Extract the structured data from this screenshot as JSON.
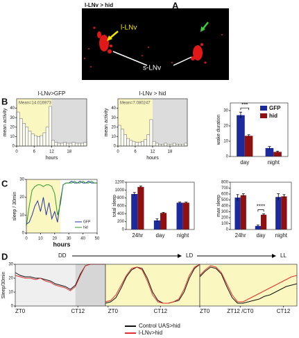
{
  "panel_labels": [
    "A",
    "B",
    "C",
    "D"
  ],
  "image": {
    "title": "l-LNv > hid",
    "labels": [
      "l-LNv",
      "s-LNv"
    ]
  },
  "d_header": [
    "DD",
    "LD",
    "LL"
  ],
  "chart_data": [
    {
      "type": "histogram",
      "title": "l-LNv>GFP",
      "annotation": "Mean=14.016973",
      "xlabel": "hours",
      "ylabel": "mean activity",
      "bins": [
        0,
        1,
        2,
        3,
        4,
        5,
        6,
        7,
        8,
        9,
        10,
        11,
        12,
        13,
        14,
        15,
        16,
        17,
        18,
        19,
        20,
        21,
        22,
        23,
        24
      ],
      "values": [
        36,
        29,
        24,
        20,
        16,
        13,
        11,
        10,
        11,
        14,
        20,
        42,
        6,
        4,
        3,
        3,
        4,
        3,
        3,
        4,
        3,
        3,
        3,
        4
      ],
      "color": "#fbfbf2",
      "xlim": [
        0,
        24
      ],
      "xticks": [
        0,
        6,
        12,
        18
      ],
      "ylim": [
        0,
        50
      ],
      "yticks": [
        0,
        10,
        20,
        30,
        40
      ],
      "shade": [
        {
          "from": 0,
          "to": 12,
          "color": "#fbf7c0"
        },
        {
          "from": 12,
          "to": 24,
          "color": "#dcdcdc"
        }
      ]
    },
    {
      "type": "histogram",
      "title": "l-LNv > hid",
      "annotation": "Mean=7.080247",
      "xlabel": "hours",
      "ylabel": "mean activity",
      "bins": [
        0,
        1,
        2,
        3,
        4,
        5,
        6,
        7,
        8,
        9,
        10,
        11,
        12,
        13,
        14,
        15,
        16,
        17,
        18,
        19,
        20,
        21,
        22,
        23,
        24
      ],
      "values": [
        22,
        18,
        12,
        8,
        6,
        5,
        4,
        4,
        5,
        7,
        12,
        28,
        5,
        3,
        2,
        2,
        3,
        2,
        2,
        3,
        2,
        2,
        2,
        3
      ],
      "color": "#fbfbf2",
      "xlim": [
        0,
        24
      ],
      "xticks": [
        0,
        6,
        12,
        18
      ],
      "ylim": [
        0,
        50
      ],
      "yticks": [
        0,
        10,
        20,
        30,
        40
      ],
      "shade": [
        {
          "from": 0,
          "to": 12,
          "color": "#fbf7c0"
        },
        {
          "from": 12,
          "to": 24,
          "color": "#dcdcdc"
        }
      ]
    },
    {
      "type": "grouped_bar",
      "ylabel": "wake duration",
      "annotation": "***",
      "legend": "upper right",
      "categories": [
        "day",
        "night"
      ],
      "series": [
        {
          "name": "GFP",
          "color": "#1b2a9c",
          "values": [
            27,
            5.5
          ],
          "errors": [
            2,
            1
          ]
        },
        {
          "name": "hid",
          "color": "#8e1010",
          "values": [
            13.5,
            3
          ],
          "errors": [
            0.7,
            0.5
          ]
        }
      ],
      "ylim": [
        0,
        35
      ],
      "yticks": [
        0,
        10,
        20,
        30
      ]
    },
    {
      "type": "line",
      "xlabel": "hours",
      "ylabel": "sleep / 30min",
      "legend": "lower right",
      "x": [
        0,
        2,
        4,
        6,
        8,
        10,
        12,
        14,
        16,
        18,
        20,
        22,
        24,
        26,
        28,
        30,
        32,
        34,
        36,
        38,
        40,
        42,
        44,
        46,
        48,
        50
      ],
      "series": [
        {
          "name": "GFP",
          "color": "#2233aa",
          "values": [
            5,
            6,
            10,
            15,
            18,
            12,
            20,
            10,
            17,
            8,
            12,
            6,
            18,
            27,
            28,
            28,
            29,
            28,
            28,
            29,
            28,
            28,
            29,
            28,
            28,
            28
          ]
        },
        {
          "name": "hid",
          "color": "#2e9a2e",
          "values": [
            4,
            15,
            24,
            26,
            27,
            27,
            26,
            27,
            27,
            26,
            22,
            10,
            16,
            27,
            28,
            28,
            28,
            29,
            28,
            28,
            29,
            28,
            28,
            29,
            28,
            28
          ]
        }
      ],
      "xlim": [
        0,
        50
      ],
      "xticks": [
        0,
        10,
        20,
        30,
        40,
        50
      ],
      "ylim": [
        0,
        30
      ],
      "yticks": [
        0,
        10,
        20,
        30
      ],
      "shade": [
        {
          "from": 0,
          "to": 24,
          "color": "#fbf7c0"
        }
      ]
    },
    {
      "type": "grouped_bar",
      "ylabel": "total sleep",
      "categories": [
        "24hr",
        "day",
        "night"
      ],
      "series": [
        {
          "color": "#1b2a9c",
          "values": [
            900,
            230,
            680
          ],
          "errors": [
            40,
            40,
            20
          ]
        },
        {
          "color": "#8e1010",
          "values": [
            1080,
            420,
            680
          ],
          "errors": [
            25,
            15,
            15
          ]
        }
      ],
      "ylim": [
        0,
        1200
      ],
      "yticks": [
        0,
        200,
        400,
        600,
        800,
        1000,
        1200
      ]
    },
    {
      "type": "grouped_bar",
      "ylabel": "max sleep",
      "annotation": "****",
      "categories": [
        "24hr",
        "day",
        "night"
      ],
      "series": [
        {
          "color": "#1b2a9c",
          "values": [
            540,
            60,
            550
          ],
          "errors": [
            50,
            15,
            55
          ]
        },
        {
          "color": "#8e1010",
          "values": [
            580,
            250,
            560
          ],
          "errors": [
            25,
            15,
            30
          ]
        }
      ],
      "ylim": [
        0,
        800
      ],
      "yticks": [
        0,
        100,
        200,
        300,
        400,
        500,
        600,
        700,
        800
      ]
    },
    {
      "type": "line",
      "ylabel": "Sleep/30min",
      "legend": "below",
      "x": [
        0,
        2,
        4,
        6,
        8,
        10,
        12,
        14,
        16,
        18,
        20,
        22,
        24,
        26,
        28,
        30,
        32,
        34,
        36
      ],
      "series": [
        {
          "name": "Control UAS>hid",
          "color": "#111111",
          "values": [
            24,
            22,
            21,
            21,
            20,
            20,
            19,
            18,
            16,
            15,
            14,
            12,
            15,
            23,
            29,
            30,
            30,
            30,
            30
          ]
        },
        {
          "name": "l-LNv>hid",
          "color": "#e03030",
          "values": [
            22,
            21,
            20,
            20,
            19,
            20,
            18,
            17,
            15,
            14,
            13,
            11,
            14,
            22,
            29,
            30,
            30,
            30,
            30
          ]
        }
      ],
      "xlim": [
        0,
        36
      ],
      "xticks": [
        {
          "value": 0,
          "label": "ZT0"
        },
        {
          "value": 25,
          "label": "CT12"
        }
      ],
      "ylim": [
        0,
        30
      ],
      "yticks": [
        0,
        10,
        20,
        30
      ],
      "shade": [
        {
          "from": 0,
          "to": 24,
          "color": "#efefef"
        },
        {
          "from": 24,
          "to": 36,
          "color": "#d6d6d6"
        }
      ]
    },
    {
      "type": "line",
      "x": [
        0,
        2,
        4,
        6,
        8,
        10,
        12,
        14,
        16,
        18,
        20,
        22,
        24,
        26,
        28,
        30,
        32,
        34,
        36
      ],
      "series": [
        {
          "color": "#111111",
          "values": [
            2,
            3,
            6,
            13,
            21,
            26,
            28,
            27,
            20,
            10,
            4,
            2,
            2,
            3,
            4,
            10,
            20,
            27,
            30
          ]
        },
        {
          "color": "#e03030",
          "values": [
            3,
            4,
            8,
            15,
            22,
            27,
            28,
            26,
            18,
            8,
            3,
            2,
            2,
            3,
            5,
            12,
            22,
            28,
            30
          ]
        }
      ],
      "xlim": [
        0,
        36
      ],
      "xticks": [
        {
          "value": 1,
          "label": "ZT0"
        },
        {
          "value": 21,
          "label": "CT12"
        }
      ],
      "ylim": [
        0,
        30
      ],
      "shade": [
        {
          "from": 0,
          "to": 36,
          "color": "#fbf7c0"
        }
      ]
    },
    {
      "type": "line",
      "x": [
        0,
        2,
        4,
        6,
        8,
        10,
        12,
        14,
        16,
        18,
        20,
        22,
        24,
        26,
        28,
        30,
        32,
        34,
        36
      ],
      "series": [
        {
          "color": "#111111",
          "values": [
            21,
            25,
            28,
            27,
            23,
            14,
            6,
            2,
            2,
            3,
            4,
            5,
            7,
            8,
            10,
            12,
            14,
            15,
            16
          ]
        },
        {
          "color": "#e03030",
          "values": [
            22,
            26,
            29,
            28,
            24,
            16,
            8,
            3,
            3,
            5,
            7,
            9,
            11,
            13,
            15,
            17,
            19,
            21,
            22
          ]
        }
      ],
      "xlim": [
        0,
        36
      ],
      "xticks": [
        {
          "value": 0,
          "label": "ZT0"
        },
        {
          "value": 15,
          "label": "ZT12 /CT0"
        },
        {
          "value": 31,
          "label": "CT12"
        }
      ],
      "ylim": [
        0,
        30
      ],
      "shade": [
        {
          "from": 0,
          "to": 36,
          "color": "#fbf7c0"
        }
      ]
    }
  ]
}
